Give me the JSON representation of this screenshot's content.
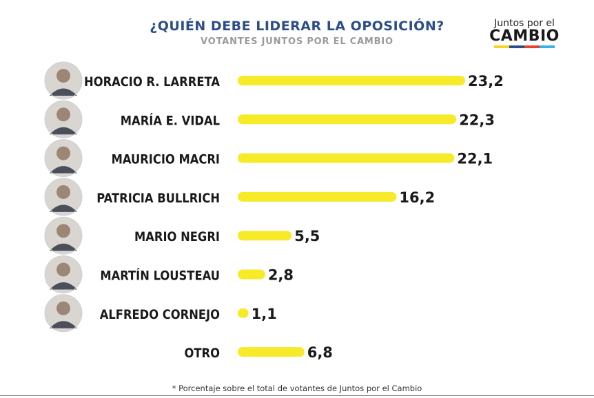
{
  "colors": {
    "title": "#2c4d8c",
    "subtitle": "#9a9a9a",
    "bar": "#f7ea29",
    "label": "#1a1a1a",
    "value": "#1a1a1a",
    "logo_stripe": [
      "#f7d21e",
      "#2c4d8c",
      "#e8412c",
      "#36b0e6"
    ]
  },
  "header": {
    "title": "¿QUIÉN DEBE LIDERAR LA OPOSICIÓN?",
    "subtitle": "VOTANTES JUNTOS POR EL CAMBIO"
  },
  "logo": {
    "top": "Juntos por el",
    "main": "CAMBIO"
  },
  "footnote": "* Porcentaje sobre el total de votantes de Juntos por el Cambio",
  "icons": {
    "avatar": "person-photo-icon"
  },
  "chart_data": {
    "type": "bar",
    "orientation": "horizontal",
    "title": "¿QUIÉN DEBE LIDERAR LA OPOSICIÓN?",
    "subtitle": "VOTANTES JUNTOS POR EL CAMBIO",
    "xlabel": "",
    "ylabel": "",
    "xlim": [
      0,
      23.2
    ],
    "grid": false,
    "legend": "none",
    "categories": [
      "HORACIO R. LARRETA",
      "MARÍA E. VIDAL",
      "MAURICIO MACRI",
      "PATRICIA BULLRICH",
      "MARIO NEGRI",
      "MARTÍN LOUSTEAU",
      "ALFREDO CORNEJO",
      "OTRO"
    ],
    "values": [
      23.2,
      22.3,
      22.1,
      16.2,
      5.5,
      2.8,
      1.1,
      6.8
    ],
    "value_labels": [
      "23,2",
      "22,3",
      "22,1",
      "16,2",
      "5,5",
      "2,8",
      "1,1",
      "6,8"
    ],
    "has_photo": [
      true,
      true,
      true,
      true,
      true,
      true,
      true,
      false
    ]
  }
}
